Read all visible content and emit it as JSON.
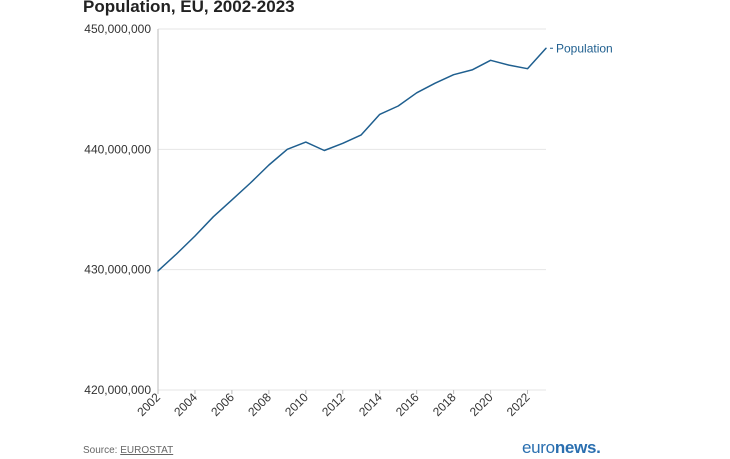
{
  "header": {
    "title": "Population, EU, 2002-2023"
  },
  "footer": {
    "source_prefix": "Source: ",
    "source_link": "EUROSTAT",
    "logo_light": "euro",
    "logo_bold": "news",
    "logo_dot": "."
  },
  "colors": {
    "line": "#1f5f8f",
    "grid": "#e6e6e6",
    "axis": "#bbbbbb",
    "text": "#333333"
  },
  "chart_data": {
    "type": "line",
    "title": "Population, EU, 2002-2023",
    "xlabel": "",
    "ylabel": "",
    "ylim": [
      420000000,
      450000000
    ],
    "yticks": [
      420000000,
      430000000,
      440000000,
      450000000
    ],
    "ytick_labels": [
      "420,000,000",
      "430,000,000",
      "440,000,000",
      "450,000,000"
    ],
    "xticks": [
      2002,
      2004,
      2006,
      2008,
      2010,
      2012,
      2014,
      2016,
      2018,
      2020,
      2022
    ],
    "xlim": [
      2002,
      2023
    ],
    "grid": true,
    "legend": "inline-end-label",
    "series": [
      {
        "name": "Population",
        "x": [
          2002,
          2003,
          2004,
          2005,
          2006,
          2007,
          2008,
          2009,
          2010,
          2011,
          2012,
          2013,
          2014,
          2015,
          2016,
          2017,
          2018,
          2019,
          2020,
          2021,
          2022,
          2023
        ],
        "values": [
          429900000,
          431300000,
          432800000,
          434400000,
          435800000,
          437200000,
          438700000,
          440000000,
          440600000,
          439900000,
          440500000,
          441200000,
          442900000,
          443600000,
          444700000,
          445500000,
          446200000,
          446600000,
          447400000,
          447000000,
          446700000,
          448400000
        ]
      }
    ]
  }
}
